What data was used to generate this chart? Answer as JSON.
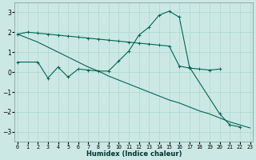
{
  "xlabel": "Humidex (Indice chaleur)",
  "line_zigzag_x": [
    0,
    2,
    3,
    4,
    5,
    6,
    7,
    8,
    9,
    10,
    11,
    12,
    13,
    14,
    15,
    16,
    17,
    20,
    21,
    22
  ],
  "line_zigzag_y": [
    0.5,
    0.5,
    -0.3,
    0.25,
    -0.25,
    0.15,
    0.1,
    0.05,
    0.05,
    0.55,
    1.05,
    1.85,
    2.25,
    2.85,
    3.05,
    2.75,
    0.25,
    -2.1,
    -2.65,
    -2.75
  ],
  "line_flat_x": [
    0,
    1,
    2,
    3,
    4,
    5,
    6,
    7,
    8,
    9,
    10,
    11,
    12,
    13,
    14,
    15,
    16,
    17,
    18,
    19,
    20
  ],
  "line_flat_y": [
    1.9,
    2.0,
    1.95,
    1.9,
    1.85,
    1.8,
    1.75,
    1.7,
    1.65,
    1.6,
    1.55,
    1.5,
    1.45,
    1.4,
    1.35,
    1.3,
    0.3,
    0.2,
    0.15,
    0.1,
    0.15
  ],
  "line_diag_x": [
    0,
    1,
    2,
    3,
    4,
    5,
    6,
    7,
    8,
    9,
    10,
    11,
    12,
    13,
    14,
    15,
    16,
    17,
    18,
    19,
    20,
    21,
    22,
    23
  ],
  "line_diag_y": [
    1.9,
    1.7,
    1.5,
    1.25,
    1.0,
    0.75,
    0.5,
    0.25,
    0.05,
    -0.2,
    -0.4,
    -0.6,
    -0.8,
    -1.0,
    -1.2,
    -1.4,
    -1.55,
    -1.75,
    -1.95,
    -2.1,
    -2.3,
    -2.5,
    -2.65,
    -2.8
  ],
  "bg_color": "#cce8e4",
  "line_color": "#006655",
  "grid_color": "#aad8d0",
  "ylim": [
    -3.5,
    3.5
  ],
  "yticks": [
    -3,
    -2,
    -1,
    0,
    1,
    2,
    3
  ],
  "xlim": [
    -0.3,
    23.3
  ],
  "xticks": [
    0,
    1,
    2,
    3,
    4,
    5,
    6,
    7,
    8,
    9,
    10,
    11,
    12,
    13,
    14,
    15,
    16,
    17,
    18,
    19,
    20,
    21,
    22,
    23
  ]
}
